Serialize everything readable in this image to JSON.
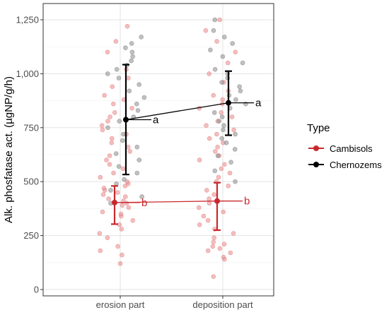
{
  "chart_data": {
    "type": "scatter",
    "title": "",
    "xlabel": "",
    "ylabel": "Alk. phosfatase act. (µgNP/g/h)",
    "categories": [
      "erosion part",
      "deposition part"
    ],
    "ylim": [
      0,
      1300
    ],
    "yticks": [
      0,
      250,
      500,
      750,
      1000,
      1250
    ],
    "ytick_labels": [
      "0",
      "250",
      "500",
      "750",
      "1,000",
      "1,250"
    ],
    "grid": true,
    "legend": {
      "title": "Type",
      "position": "right"
    },
    "series": [
      {
        "name": "Cambisols",
        "color": "#c8282d",
        "point_color": "#e8898b",
        "mean": [
          403,
          410
        ],
        "lower": [
          303,
          275
        ],
        "upper": [
          480,
          495
        ],
        "significance": [
          "b",
          "b"
        ],
        "points": [
          [
            120,
            240,
            300,
            320,
            340,
            350,
            360,
            380,
            390,
            400,
            410,
            420,
            430,
            440,
            450,
            460,
            470,
            480,
            490,
            500,
            520,
            540,
            560,
            580,
            600,
            620,
            640,
            660,
            680,
            700,
            720,
            740,
            760,
            780,
            800,
            820,
            840,
            860,
            880,
            900,
            940,
            980,
            1020,
            1100,
            1150,
            1220,
            160,
            180,
            200,
            260,
            280
          ],
          [
            60,
            140,
            180,
            200,
            220,
            240,
            260,
            280,
            300,
            320,
            340,
            360,
            380,
            400,
            420,
            440,
            460,
            480,
            500,
            520,
            540,
            560,
            580,
            600,
            620,
            640,
            660,
            680,
            700,
            720,
            740,
            760,
            780,
            800,
            820,
            840,
            860,
            880,
            900,
            920,
            960,
            1000,
            1050,
            1100,
            1150,
            1200,
            1250,
            150,
            170,
            190,
            210
          ]
        ]
      },
      {
        "name": "Chernozems",
        "color": "#000000",
        "point_color": "#8c8c8c",
        "mean": [
          787,
          865
        ],
        "lower": [
          533,
          715
        ],
        "upper": [
          1042,
          1012
        ],
        "significance": [
          "a",
          "a"
        ],
        "points": [
          [
            400,
            430,
            460,
            490,
            510,
            540,
            570,
            600,
            630,
            660,
            690,
            720,
            750,
            780,
            800,
            830,
            860,
            890,
            920,
            950,
            980,
            1000,
            1020,
            1040,
            1060,
            1080,
            1100,
            1120,
            1140,
            1170
          ],
          [
            500,
            550,
            590,
            620,
            650,
            680,
            700,
            720,
            740,
            760,
            780,
            800,
            820,
            840,
            860,
            880,
            900,
            920,
            940,
            960,
            980,
            1000,
            1020,
            1050,
            1080,
            1110,
            1140,
            1170,
            1200,
            1250
          ]
        ]
      }
    ]
  }
}
